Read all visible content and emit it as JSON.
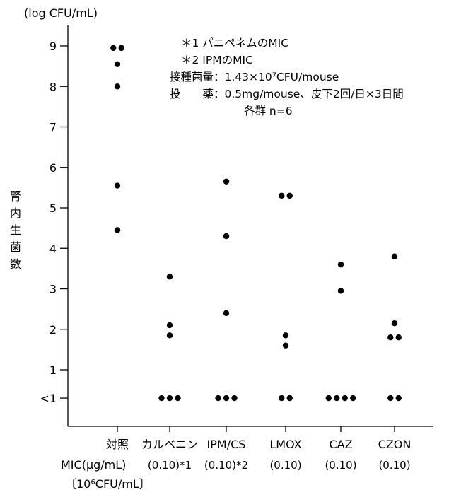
{
  "chart_data": {
    "type": "scatter",
    "y_unit_label": "(log CFU/mL)",
    "ylabel_chars": [
      "腎",
      "内",
      "生",
      "菌",
      "数"
    ],
    "y_ticks": [
      {
        "value": 9,
        "label": "9"
      },
      {
        "value": 8,
        "label": "8"
      },
      {
        "value": 7,
        "label": "7"
      },
      {
        "value": 6,
        "label": "6"
      },
      {
        "value": 5,
        "label": "5"
      },
      {
        "value": 4,
        "label": "4"
      },
      {
        "value": 3,
        "label": "3"
      },
      {
        "value": 2,
        "label": "2"
      },
      {
        "value": 1,
        "label": "1"
      },
      {
        "value": 0.3,
        "label": "<1"
      }
    ],
    "ylim": [
      0,
      9.6
    ],
    "below_detection_value": 0.3,
    "categories": [
      "対照",
      "カルベニン",
      "IPM/CS",
      "LMOX",
      "CAZ",
      "CZON"
    ],
    "mic_row_label": "MIC(μg/mL)",
    "mic_unit_label": "〔10⁶CFU/mL〕",
    "mic_values": [
      "",
      "(0.10)*1",
      "(0.10)*2",
      "(0.10)",
      "(0.10)",
      "(0.10)"
    ],
    "points": [
      [
        8.95,
        8.95,
        8.55,
        8.0,
        5.55,
        4.45
      ],
      [
        3.3,
        2.1,
        1.85,
        0.3,
        0.3,
        0.3
      ],
      [
        5.65,
        4.3,
        2.4,
        0.3,
        0.3,
        0.3
      ],
      [
        5.3,
        5.3,
        1.85,
        1.6,
        0.3,
        0.3
      ],
      [
        3.6,
        2.95,
        0.3,
        0.3,
        0.3,
        0.3
      ],
      [
        3.8,
        2.15,
        1.8,
        1.8,
        0.3,
        0.3
      ]
    ],
    "annotations": [
      "＊1 パニペネムのMIC",
      "＊2 IPMのMIC",
      "接種菌量：1.43×10⁷CFU/mouse",
      "投　　薬：0.5mg/mouse、皮下2回/日×3日間",
      "各群 n=6"
    ],
    "grid": false,
    "legend": "none"
  }
}
